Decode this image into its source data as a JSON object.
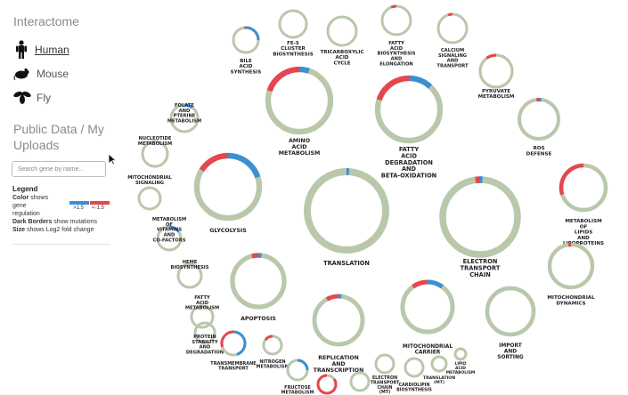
{
  "sidebar": {
    "title": "Interactome",
    "organisms": [
      {
        "label": "Human",
        "icon": "human-icon",
        "active": true
      },
      {
        "label": "Mouse",
        "icon": "mouse-icon",
        "active": false
      },
      {
        "label": "Fly",
        "icon": "fly-icon",
        "active": false
      }
    ],
    "section_title_1": "Public Data / My",
    "section_title_2": "Uploads",
    "search_placeholder": "Search gene by name...",
    "legend": {
      "title": "Legend",
      "color_key": "Color",
      "color_text": " shows",
      "color_text2": "gene",
      "color_text3": "regulation",
      "high_label": ">1.5",
      "low_label": "<-1.5",
      "dark_key": "Dark Borders",
      "dark_text": " show mutations",
      "size_key": "Size",
      "size_text": " shows Log2 fold change"
    }
  },
  "colors": {
    "neutral": "#b9c7ab",
    "up": "#e4474d",
    "down": "#3c8fd3"
  },
  "pathways": [
    {
      "id": "fe-s",
      "lines": [
        "FE-S",
        "CLUSTER",
        "BIOSYNTHESIS"
      ],
      "red": 0,
      "blue": 0
    },
    {
      "id": "tca",
      "lines": [
        "TRICARBOXYLIC",
        "ACID",
        "CYCLE"
      ],
      "red": 0,
      "blue": 0
    },
    {
      "id": "fatty-bio",
      "lines": [
        "FATTY",
        "ACID",
        "BIOSYNTHESIS",
        "AND",
        "ELONGATION"
      ],
      "red": 0.06,
      "blue": 0
    },
    {
      "id": "calcium",
      "lines": [
        "CALCIUM",
        "SIGNALING",
        "AND",
        "TRANSPORT"
      ],
      "red": 0.05,
      "blue": 0
    },
    {
      "id": "bile",
      "lines": [
        "BILE",
        "ACID",
        "SYNTHESIS"
      ],
      "red": 0.02,
      "blue": 0.25
    },
    {
      "id": "amino",
      "lines": [
        "AMINO",
        "ACID",
        "METABOLISM"
      ],
      "red": 0.2,
      "blue": 0.05
    },
    {
      "id": "fatty-deg",
      "lines": [
        "FATTY",
        "ACID",
        "DEGRADATION",
        "AND",
        "BETA-OXIDATION"
      ],
      "red": 0.2,
      "blue": 0.12
    },
    {
      "id": "pyruvate",
      "lines": [
        "PYRUVATE",
        "METABOLISM"
      ],
      "red": 0.1,
      "blue": 0
    },
    {
      "id": "folate",
      "lines": [
        "FOLATE",
        "AND",
        "PTERINE",
        "METABOLISM"
      ],
      "red": 0,
      "blue": 0.1
    },
    {
      "id": "ros",
      "lines": [
        "ROS",
        "DEFENSE"
      ],
      "red": 0.02,
      "blue": 0.02
    },
    {
      "id": "nucleotide",
      "lines": [
        "NUCLEOTIDE",
        "METABOLISM"
      ],
      "red": 0,
      "blue": 0
    },
    {
      "id": "glycolysis",
      "lines": [
        "GLYCOLYSIS"
      ],
      "red": 0.16,
      "blue": 0.2
    },
    {
      "id": "translation",
      "lines": [
        "TRANSLATION"
      ],
      "red": 0,
      "blue": 0.01
    },
    {
      "id": "etc",
      "lines": [
        "ELECTRON",
        "TRANSPORT",
        "CHAIN"
      ],
      "red": 0.02,
      "blue": 0.01
    },
    {
      "id": "lipids",
      "lines": [
        "METABOLISM",
        "OF",
        "LIPIDS",
        "AND",
        "LIPOPROTEINS"
      ],
      "red": 0.3,
      "blue": 0
    },
    {
      "id": "mito-sig",
      "lines": [
        "MITOCHONDRIAL",
        "SIGNALING"
      ],
      "red": 0,
      "blue": 0
    },
    {
      "id": "vitamins",
      "lines": [
        "METABOLISM",
        "OF",
        "VITAMINS",
        "AND",
        "CO-FACTORS"
      ],
      "red": 0,
      "blue": 0.15
    },
    {
      "id": "heme",
      "lines": [
        "HEME",
        "BIOSYNTHESIS"
      ],
      "red": 0,
      "blue": 0
    },
    {
      "id": "mito-dyn",
      "lines": [
        "MITOCHONDRIAL",
        "DYNAMICS"
      ],
      "red": 0.02,
      "blue": 0
    },
    {
      "id": "apoptosis",
      "lines": [
        "APOPTOSIS"
      ],
      "red": 0.04,
      "blue": 0.02
    },
    {
      "id": "fatty-met",
      "lines": [
        "FATTY",
        "ACID",
        "METABOLISM"
      ],
      "red": 0,
      "blue": 0
    },
    {
      "id": "mito-carrier",
      "lines": [
        "MITOCHONDRIAL",
        "CARRIER"
      ],
      "red": 0.1,
      "blue": 0.1
    },
    {
      "id": "import",
      "lines": [
        "IMPORT",
        "AND",
        "SORTING"
      ],
      "red": 0,
      "blue": 0
    },
    {
      "id": "replication",
      "lines": [
        "REPLICATION",
        "AND",
        "TRANSCRIPTION"
      ],
      "red": 0.08,
      "blue": 0.02
    },
    {
      "id": "protein",
      "lines": [
        "PROTEIN",
        "STABILITY",
        "AND",
        "DEGRADATION"
      ],
      "red": 0,
      "blue": 0
    },
    {
      "id": "transmembrane",
      "lines": [
        "TRANSMEMBRANE",
        "TRANSPORT"
      ],
      "red": 0.3,
      "blue": 0.45
    },
    {
      "id": "nitrogen",
      "lines": [
        "NITROGEN",
        "METABOLISM"
      ],
      "red": 0.15,
      "blue": 0
    },
    {
      "id": "fructose",
      "lines": [
        "FRUCTOSE",
        "METABOLISM"
      ],
      "red": 0,
      "blue": 0.25
    },
    {
      "id": "electron-mt",
      "lines": [
        "ELECTRON",
        "TRANSPORT",
        "CHAIN",
        "(MT)"
      ],
      "red": 0,
      "blue": 0
    },
    {
      "id": "cardiolipin",
      "lines": [
        "CARDIOLIPIN",
        "BIOSYNTHESIS"
      ],
      "red": 0,
      "blue": 0
    },
    {
      "id": "translation-mt",
      "lines": [
        "TRANSLATION",
        "(MT)"
      ],
      "red": 0,
      "blue": 0
    },
    {
      "id": "lipid-acid",
      "lines": [
        "LIPID",
        "ACID",
        "METABOLISM"
      ],
      "red": 0,
      "blue": 0
    },
    {
      "id": "unlabeled-1",
      "lines": [],
      "red": 0.85,
      "blue": 0
    },
    {
      "id": "unlabeled-2",
      "lines": [],
      "red": 0,
      "blue": 0
    }
  ]
}
